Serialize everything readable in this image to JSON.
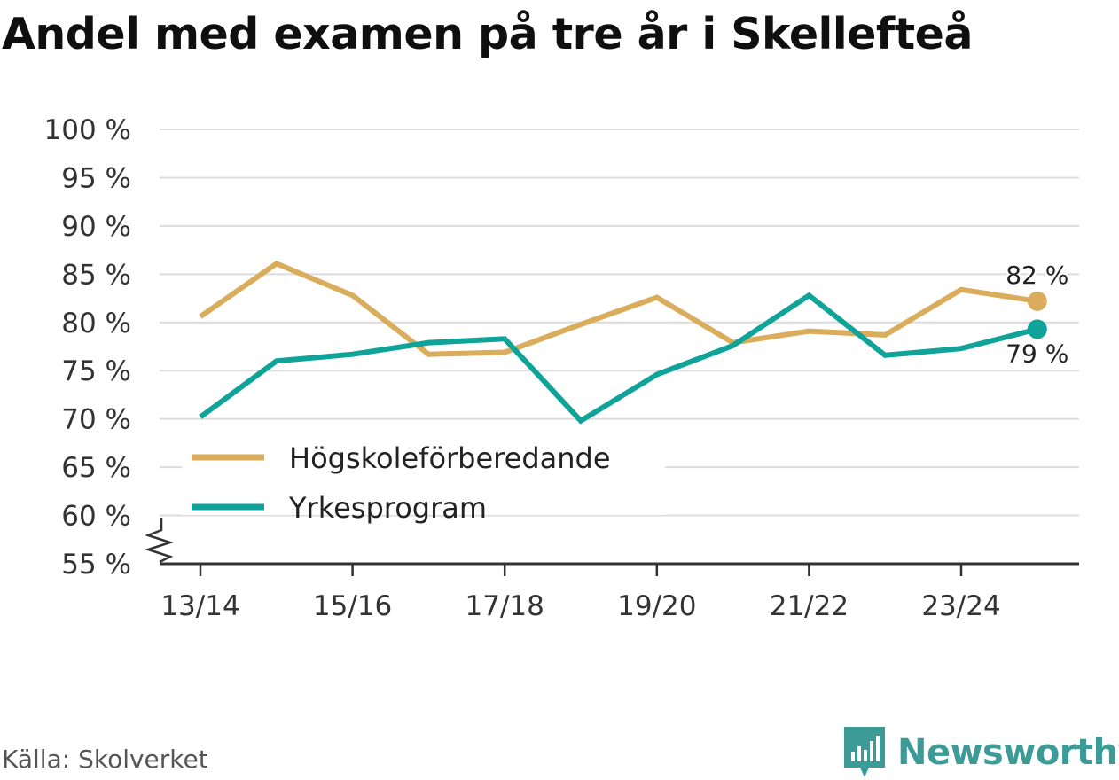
{
  "title": "Andel med examen på tre år i Skellefteå",
  "source": "Källa: Skolverket",
  "brand": {
    "name": "Newsworthy",
    "icon": "newsworthy-logo-icon",
    "color": "#3d9b97"
  },
  "chart_data": {
    "type": "line",
    "title": "Andel med examen på tre år i Skellefteå",
    "x": [
      "13/14",
      "14/15",
      "15/16",
      "16/17",
      "17/18",
      "18/19",
      "19/20",
      "20/21",
      "21/22",
      "22/23",
      "23/24",
      "24/25"
    ],
    "x_tick_labels": [
      "13/14",
      "15/16",
      "17/18",
      "19/20",
      "21/22",
      "23/24"
    ],
    "y_ticks": [
      55,
      60,
      65,
      70,
      75,
      80,
      85,
      90,
      95,
      100
    ],
    "y_tick_suffix": " %",
    "ylim": [
      55,
      100
    ],
    "y_axis_break": true,
    "grid": true,
    "legend_position": "bottom-left",
    "series": [
      {
        "name": "Högskoleförberedande",
        "color": "#d9ad5b",
        "values": [
          80.6,
          86.1,
          82.8,
          76.7,
          76.9,
          79.8,
          82.6,
          77.9,
          79.1,
          78.7,
          83.4,
          82.2
        ],
        "end_label": "82 %"
      },
      {
        "name": "Yrkesprogram",
        "color": "#0fa399",
        "values": [
          70.2,
          76.0,
          76.7,
          77.9,
          78.3,
          69.8,
          74.6,
          77.6,
          82.8,
          76.6,
          77.3,
          79.3
        ],
        "end_label": "79 %"
      }
    ]
  }
}
